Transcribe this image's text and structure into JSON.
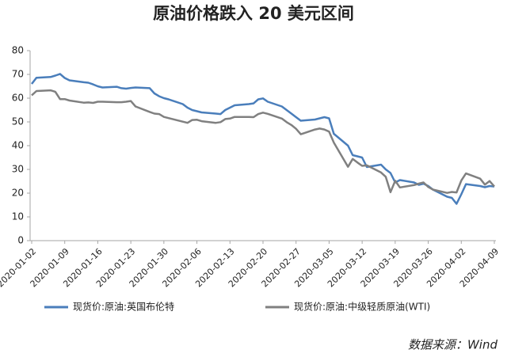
{
  "chart_data": {
    "type": "line",
    "title": "原油价格跌入 20 美元区间",
    "x": [
      "2020-01-02",
      "2020-01-03",
      "2020-01-06",
      "2020-01-07",
      "2020-01-08",
      "2020-01-09",
      "2020-01-10",
      "2020-01-13",
      "2020-01-14",
      "2020-01-15",
      "2020-01-16",
      "2020-01-17",
      "2020-01-20",
      "2020-01-21",
      "2020-01-22",
      "2020-01-23",
      "2020-01-24",
      "2020-01-27",
      "2020-01-28",
      "2020-01-29",
      "2020-01-30",
      "2020-01-31",
      "2020-02-03",
      "2020-02-04",
      "2020-02-05",
      "2020-02-06",
      "2020-02-07",
      "2020-02-10",
      "2020-02-11",
      "2020-02-12",
      "2020-02-13",
      "2020-02-14",
      "2020-02-17",
      "2020-02-18",
      "2020-02-19",
      "2020-02-20",
      "2020-02-21",
      "2020-02-24",
      "2020-02-25",
      "2020-02-26",
      "2020-02-27",
      "2020-02-28",
      "2020-03-02",
      "2020-03-03",
      "2020-03-04",
      "2020-03-05",
      "2020-03-06",
      "2020-03-09",
      "2020-03-10",
      "2020-03-11",
      "2020-03-12",
      "2020-03-13",
      "2020-03-16",
      "2020-03-17",
      "2020-03-18",
      "2020-03-19",
      "2020-03-20",
      "2020-03-23",
      "2020-03-24",
      "2020-03-25",
      "2020-03-26",
      "2020-03-27",
      "2020-03-30",
      "2020-03-31",
      "2020-04-01",
      "2020-04-02",
      "2020-04-03",
      "2020-04-06",
      "2020-04-07",
      "2020-04-08",
      "2020-04-09"
    ],
    "series": [
      {
        "name": "现货价:原油:英国布伦特",
        "color": "#4a7ebb",
        "values": [
          66.0,
          68.6,
          68.9,
          69.5,
          70.2,
          68.5,
          67.5,
          66.7,
          66.5,
          65.8,
          65.0,
          64.5,
          64.8,
          64.2,
          64.0,
          64.3,
          64.5,
          64.2,
          62.0,
          60.8,
          60.0,
          59.5,
          57.5,
          56.0,
          55.0,
          54.5,
          54.0,
          53.5,
          53.3,
          55.0,
          56.0,
          57.0,
          57.5,
          57.8,
          59.5,
          59.9,
          58.5,
          56.5,
          55.0,
          53.5,
          52.0,
          50.5,
          51.0,
          51.5,
          52.0,
          51.5,
          45.0,
          40.0,
          36.0,
          35.5,
          35.0,
          31.0,
          32.0,
          30.0,
          28.5,
          24.5,
          25.5,
          24.5,
          23.5,
          24.0,
          23.0,
          21.5,
          18.5,
          18.0,
          15.5,
          19.5,
          23.8,
          23.0,
          22.5,
          23.0,
          22.8
        ]
      },
      {
        "name": "现货价:原油:中级轻质原油(WTI)",
        "color": "#808080",
        "values": [
          61.2,
          63.0,
          63.3,
          62.7,
          59.6,
          59.6,
          59.0,
          58.1,
          58.2,
          58.0,
          58.5,
          58.5,
          58.3,
          58.3,
          58.5,
          58.8,
          56.5,
          54.2,
          53.5,
          53.3,
          52.1,
          51.6,
          50.1,
          49.6,
          50.8,
          50.9,
          50.3,
          49.6,
          49.9,
          51.2,
          51.4,
          52.1,
          52.1,
          52.0,
          53.3,
          53.9,
          53.4,
          51.4,
          49.9,
          48.7,
          47.1,
          44.8,
          46.8,
          47.2,
          46.8,
          45.9,
          41.3,
          31.1,
          34.4,
          32.9,
          31.5,
          31.7,
          28.7,
          26.9,
          20.4,
          25.2,
          22.4,
          23.4,
          24.0,
          24.5,
          22.6,
          21.5,
          20.1,
          20.5,
          20.3,
          25.3,
          28.3,
          26.1,
          23.6,
          25.1,
          22.8
        ]
      }
    ],
    "xlim": [
      "2020-01-02",
      "2020-04-09"
    ],
    "xticks": [
      "2020-01-02",
      "2020-01-09",
      "2020-01-16",
      "2020-01-23",
      "2020-01-30",
      "2020-02-06",
      "2020-02-13",
      "2020-02-20",
      "2020-02-27",
      "2020-03-05",
      "2020-03-12",
      "2020-03-19",
      "2020-03-26",
      "2020-04-02",
      "2020-04-09"
    ],
    "ylim": [
      0,
      80
    ],
    "yticks": [
      0,
      10,
      20,
      30,
      40,
      50,
      60,
      70,
      80
    ],
    "grid": false,
    "source": "数据来源：Wind"
  }
}
